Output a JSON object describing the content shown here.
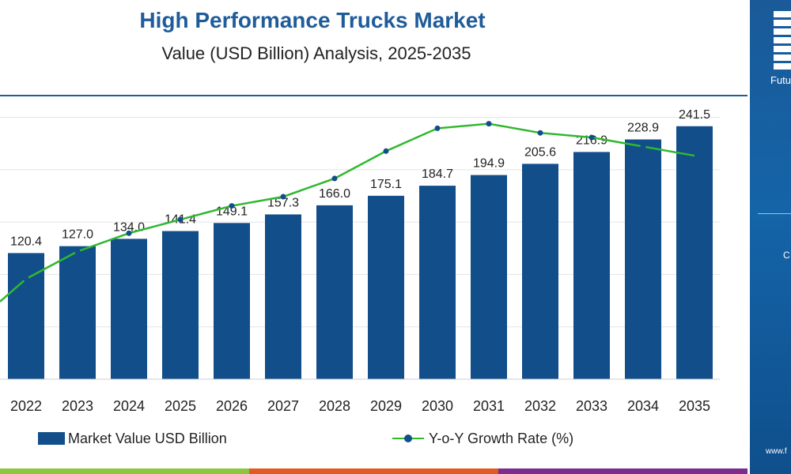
{
  "title": "High Performance Trucks Market",
  "subtitle": "Value (USD Billion) Analysis, 2025-2035",
  "legend": {
    "bar_label": "Market Value USD Billion",
    "line_label": "Y-o-Y Growth Rate (%)"
  },
  "side_panel": {
    "logo_text": "Futu",
    "mid_text": "C",
    "url_text": "www.f"
  },
  "colors": {
    "bar": "#114e8a",
    "line": "#2fb82f",
    "marker": "#114e8a",
    "title": "#1f5c9a",
    "footer": [
      "#8cc63f",
      "#e35a24",
      "#7b2c8c"
    ]
  },
  "chart_data": {
    "type": "bar",
    "title": "High Performance Trucks Market",
    "subtitle": "Value (USD Billion) Analysis, 2025-2035",
    "categories": [
      "2022",
      "2023",
      "2024",
      "2025",
      "2026",
      "2027",
      "2028",
      "2029",
      "2030",
      "2031",
      "2032",
      "2033",
      "2034",
      "2035"
    ],
    "series": [
      {
        "name": "Market Value USD Billion",
        "type": "bar",
        "values": [
          120.4,
          127.0,
          134.0,
          141.4,
          149.1,
          157.3,
          166.0,
          175.1,
          184.7,
          194.9,
          205.6,
          216.9,
          228.9,
          241.5
        ],
        "labels": [
          "120.4",
          "127.0",
          "134.0",
          "141.4",
          "149.1",
          "157.3",
          "166.0",
          "175.1",
          "184.7",
          "194.9",
          "205.6",
          "216.9",
          "228.9",
          "241.5"
        ]
      },
      {
        "name": "Y-o-Y Growth Rate (%)",
        "type": "line",
        "values": [
          5.1,
          5.4,
          5.6,
          5.75,
          5.9,
          6.0,
          6.2,
          6.5,
          6.75,
          6.8,
          6.7,
          6.65,
          6.55,
          6.45
        ],
        "ylim": [
          4.0,
          7.1
        ]
      }
    ],
    "ylim": [
      0,
      270
    ],
    "grid": true,
    "legend": "bottom"
  }
}
